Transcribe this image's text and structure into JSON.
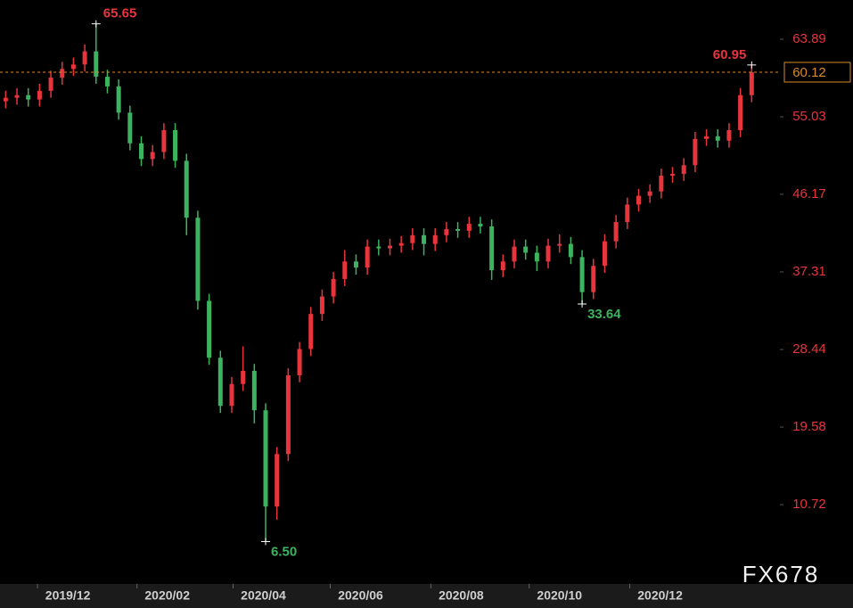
{
  "chart_data": {
    "type": "candlestick",
    "watermark": "FX678",
    "up_color": "#e8343d",
    "down_color": "#3cb35f",
    "last_color": "#d98a2b",
    "xlim": [
      -0.5,
      68.5
    ],
    "ylim": [
      1.66,
      68.37
    ],
    "yticks": [
      10.72,
      19.58,
      28.44,
      37.31,
      46.17,
      55.03,
      63.89
    ],
    "xticks": [
      {
        "value": 5.5,
        "label": "2019/12"
      },
      {
        "value": 14.3,
        "label": "2020/02"
      },
      {
        "value": 22.8,
        "label": "2020/04"
      },
      {
        "value": 31.4,
        "label": "2020/06"
      },
      {
        "value": 40.3,
        "label": "2020/08"
      },
      {
        "value": 49.0,
        "label": "2020/10"
      },
      {
        "value": 57.9,
        "label": "2020/12"
      }
    ],
    "annotations": [
      65.65,
      {
        "value": 6.5,
        "label": "6.50"
      },
      33.64,
      60.95
    ],
    "open": [
      56.8,
      57.2,
      57.5,
      57.0,
      58.0,
      59.5,
      60.5,
      61.0,
      62.5,
      59.6,
      58.5,
      55.5,
      52.0,
      50.2,
      51.0,
      53.5,
      50.0,
      43.5,
      34.0,
      27.5,
      22.0,
      24.5,
      26.0,
      21.5,
      10.5,
      16.5,
      25.5,
      28.5,
      32.5,
      34.5,
      36.5,
      38.5,
      37.8,
      40.2,
      40.0,
      40.3,
      40.6,
      41.5,
      40.5,
      41.5,
      42.2,
      42.0,
      42.8,
      42.5,
      37.5,
      38.5,
      40.2,
      39.5,
      38.5,
      40.3,
      40.5,
      39.0,
      35.0,
      38.0,
      40.8,
      43.0,
      45.0,
      46.0,
      46.5,
      48.3,
      48.5,
      49.5,
      52.5,
      52.8,
      52.3,
      53.5,
      57.5
    ],
    "high": [
      58.0,
      58.3,
      58.3,
      58.8,
      60.3,
      61.3,
      61.8,
      63.3,
      65.65,
      60.4,
      59.3,
      56.3,
      52.8,
      51.8,
      54.3,
      54.3,
      50.8,
      44.3,
      34.8,
      28.3,
      25.3,
      28.8,
      26.8,
      22.3,
      17.3,
      26.3,
      29.3,
      33.3,
      35.3,
      37.3,
      39.8,
      39.3,
      41.0,
      41.0,
      41.1,
      41.4,
      42.3,
      42.3,
      42.3,
      43.0,
      43.0,
      43.6,
      43.6,
      43.3,
      39.3,
      41.0,
      41.0,
      40.3,
      41.1,
      41.6,
      41.3,
      39.8,
      38.8,
      41.6,
      43.8,
      45.8,
      46.8,
      47.3,
      49.1,
      49.3,
      50.3,
      53.3,
      53.6,
      53.6,
      54.3,
      58.3,
      60.95
    ],
    "low": [
      56.0,
      56.4,
      56.2,
      56.2,
      57.2,
      58.7,
      59.7,
      60.2,
      58.8,
      57.7,
      54.7,
      51.2,
      49.4,
      49.4,
      50.2,
      49.2,
      41.5,
      33.0,
      26.7,
      21.2,
      21.2,
      23.7,
      20.0,
      6.5,
      9.0,
      15.7,
      24.7,
      27.7,
      31.7,
      33.7,
      35.7,
      37.0,
      37.0,
      39.2,
      39.2,
      39.5,
      39.8,
      39.2,
      39.7,
      40.7,
      41.2,
      41.2,
      41.7,
      36.4,
      36.7,
      37.7,
      38.7,
      37.4,
      37.7,
      39.5,
      38.2,
      33.64,
      34.2,
      37.2,
      40.0,
      42.2,
      44.2,
      45.2,
      45.7,
      47.5,
      47.7,
      48.7,
      51.7,
      51.5,
      51.5,
      52.7,
      56.7
    ],
    "close": [
      57.2,
      57.5,
      57.0,
      58.0,
      59.5,
      60.5,
      61.0,
      62.5,
      59.6,
      58.5,
      55.5,
      52.0,
      50.2,
      51.0,
      53.5,
      50.0,
      43.5,
      34.0,
      27.5,
      22.0,
      24.5,
      26.0,
      21.5,
      10.5,
      16.5,
      25.5,
      28.5,
      32.5,
      34.5,
      36.5,
      38.5,
      37.8,
      40.2,
      40.0,
      40.3,
      40.6,
      41.5,
      40.5,
      41.5,
      42.2,
      42.0,
      42.8,
      42.5,
      37.5,
      38.5,
      40.2,
      39.5,
      38.5,
      40.3,
      40.5,
      39.0,
      35.0,
      38.0,
      40.8,
      43.0,
      45.0,
      46.0,
      46.5,
      48.3,
      48.5,
      49.5,
      52.5,
      52.8,
      52.3,
      53.5,
      57.5,
      60.12
    ]
  }
}
